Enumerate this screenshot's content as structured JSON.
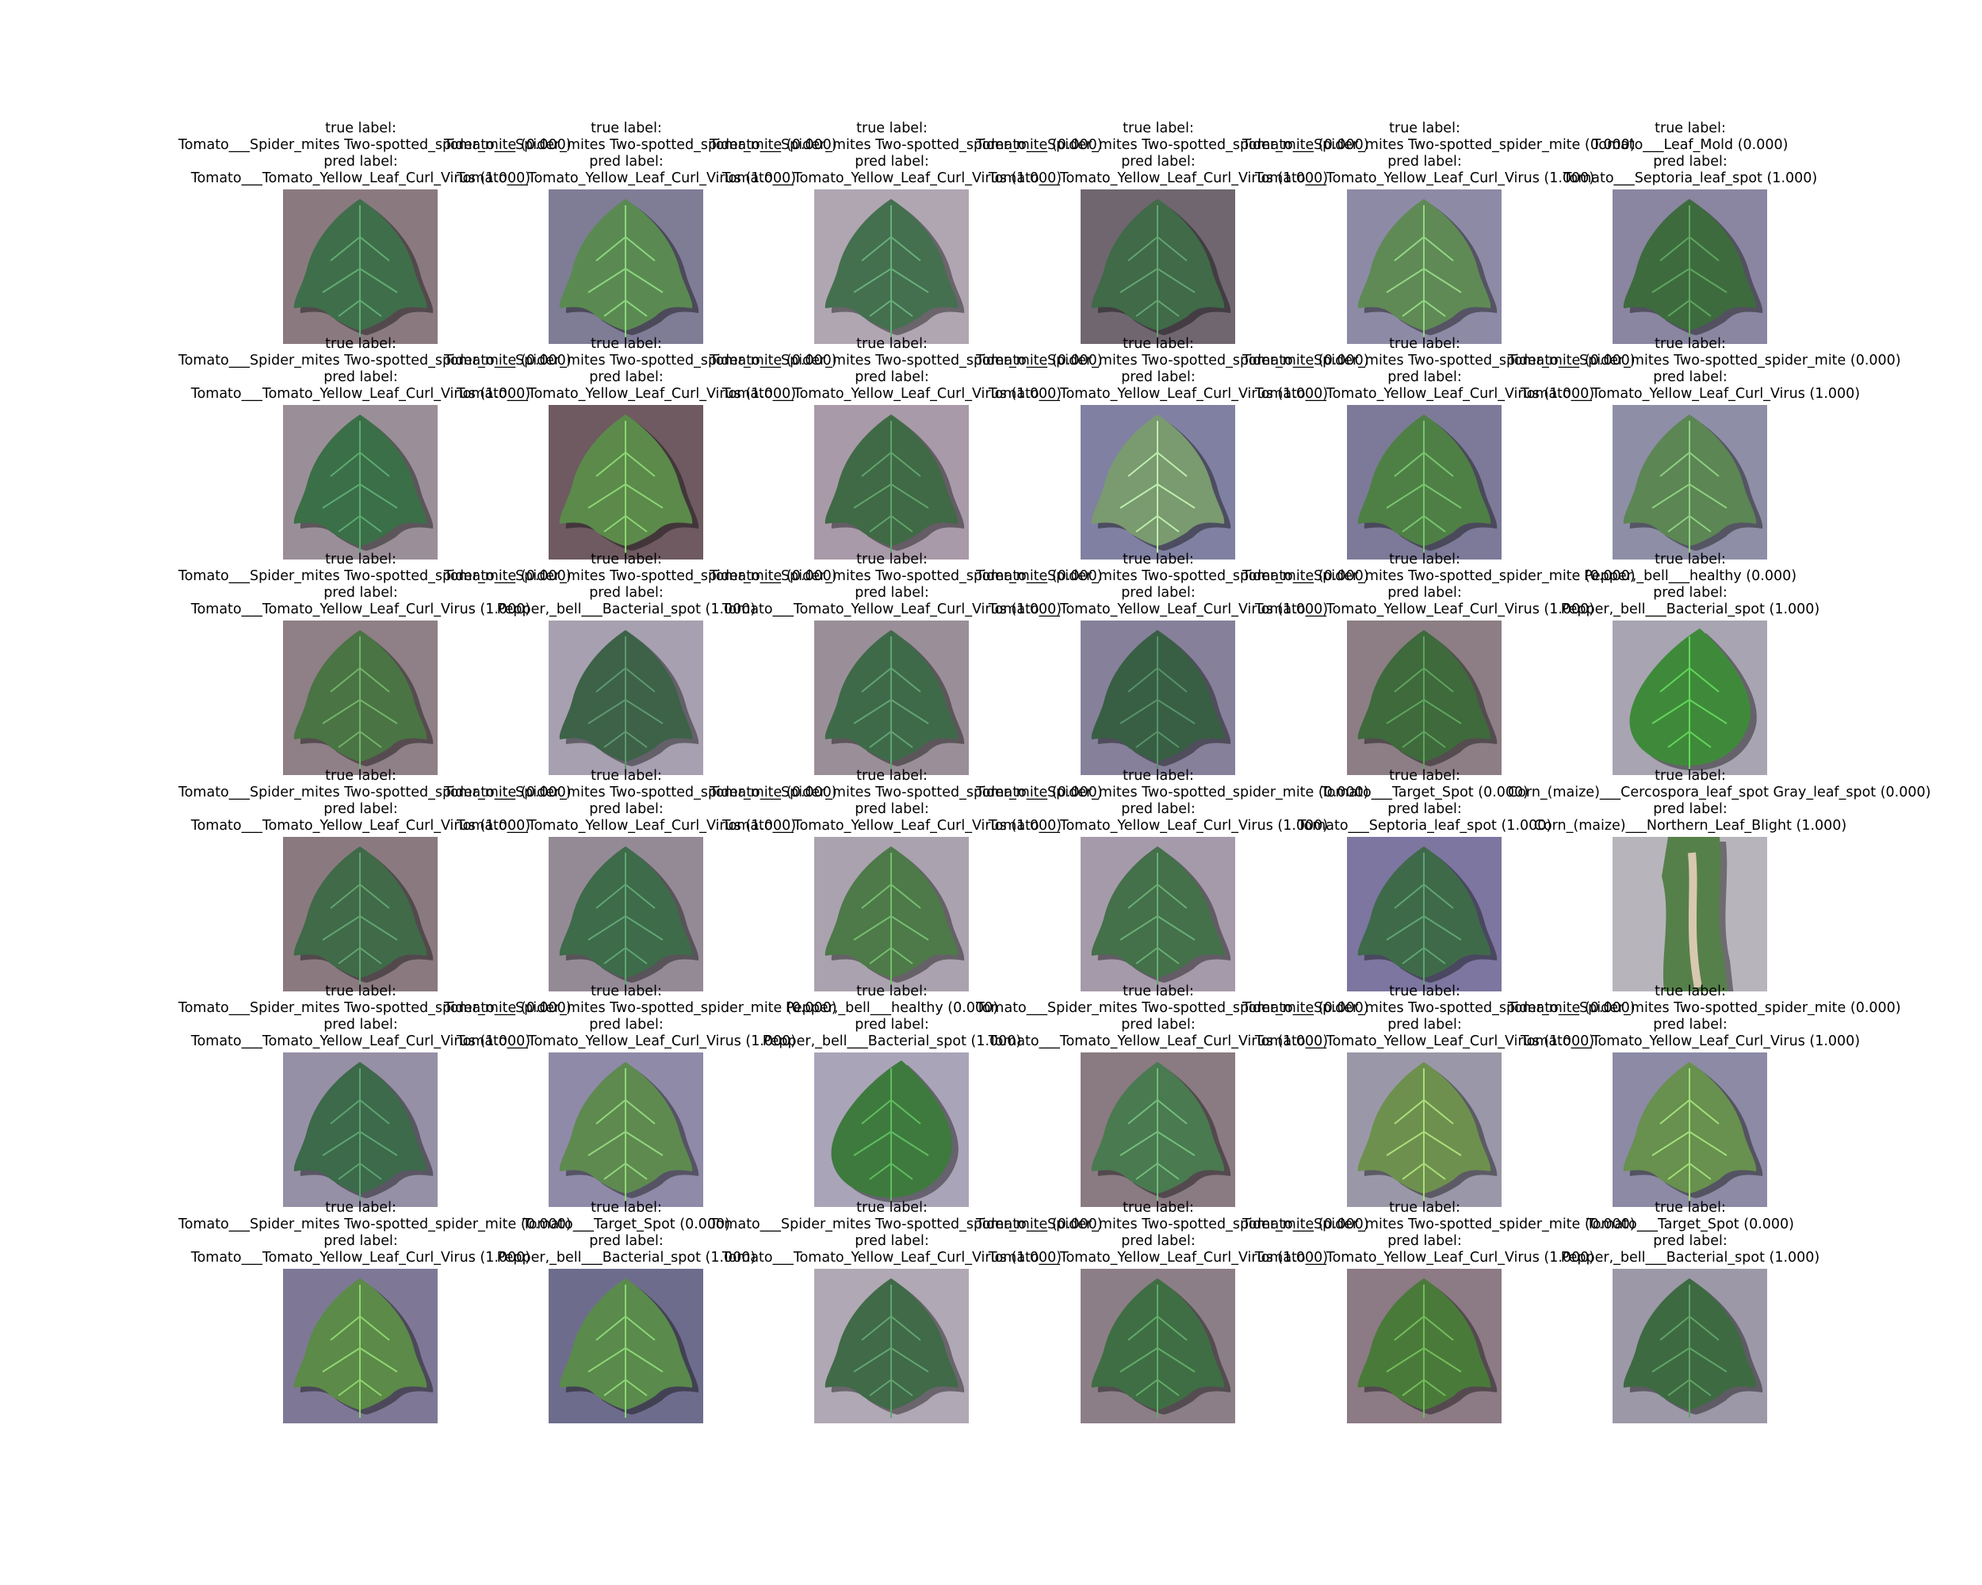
{
  "caption_labels": {
    "true": "true label:",
    "pred": "pred label:"
  },
  "panels": [
    {
      "true_value": "Tomato___Spider_mites Two-spotted_spider_mite (0.000)",
      "pred_value": "Tomato___Tomato_Yellow_Leaf_Curl_Virus (1.000)",
      "background": "#8a7a80",
      "leaf_color": "#3f6f4a",
      "leaf": "tomato-leaf"
    },
    {
      "true_value": "Tomato___Spider_mites Two-spotted_spider_mite (0.000)",
      "pred_value": "Tomato___Tomato_Yellow_Leaf_Curl_Virus (1.000)",
      "background": "#7f7c96",
      "leaf_color": "#5a8a52",
      "leaf": "tomato-leaf"
    },
    {
      "true_value": "Tomato___Spider_mites Two-spotted_spider_mite (0.000)",
      "pred_value": "Tomato___Tomato_Yellow_Leaf_Curl_Virus (1.000)",
      "background": "#b0a6b2",
      "leaf_color": "#44704f",
      "leaf": "tomato-leaf"
    },
    {
      "true_value": "Tomato___Spider_mites Two-spotted_spider_mite (0.000)",
      "pred_value": "Tomato___Tomato_Yellow_Leaf_Curl_Virus (1.000)",
      "background": "#6f6670",
      "leaf_color": "#406a48",
      "leaf": "tomato-leaf"
    },
    {
      "true_value": "Tomato___Spider_mites Two-spotted_spider_mite (0.000)",
      "pred_value": "Tomato___Tomato_Yellow_Leaf_Curl_Virus (1.000)",
      "background": "#8d8aa6",
      "leaf_color": "#5f8a55",
      "leaf": "tomato-leaf"
    },
    {
      "true_value": "Tomato___Leaf_Mold (0.000)",
      "pred_value": "Tomato___Septoria_leaf_spot (1.000)",
      "background": "#8a85a0",
      "leaf_color": "#3d6b3e",
      "leaf": "tomato-leaf"
    },
    {
      "true_value": "Tomato___Spider_mites Two-spotted_spider_mite (0.000)",
      "pred_value": "Tomato___Tomato_Yellow_Leaf_Curl_Virus (1.000)",
      "background": "#9a8f98",
      "leaf_color": "#3b6f48",
      "leaf": "tomato-leaf"
    },
    {
      "true_value": "Tomato___Spider_mites Two-spotted_spider_mite (0.000)",
      "pred_value": "Tomato___Tomato_Yellow_Leaf_Curl_Virus (1.000)",
      "background": "#6e5a60",
      "leaf_color": "#5b8a4a",
      "leaf": "tomato-leaf"
    },
    {
      "true_value": "Tomato___Spider_mites Two-spotted_spider_mite (0.000)",
      "pred_value": "Tomato___Tomato_Yellow_Leaf_Curl_Virus (1.000)",
      "background": "#a89aa8",
      "leaf_color": "#3f6a45",
      "leaf": "tomato-leaf"
    },
    {
      "true_value": "Tomato___Spider_mites Two-spotted_spider_mite (0.000)",
      "pred_value": "Tomato___Tomato_Yellow_Leaf_Curl_Virus (1.000)",
      "background": "#8080a2",
      "leaf_color": "#7a9a70",
      "leaf": "tomato-leaf"
    },
    {
      "true_value": "Tomato___Spider_mites Two-spotted_spider_mite (0.000)",
      "pred_value": "Tomato___Tomato_Yellow_Leaf_Curl_Virus (1.000)",
      "background": "#7c7a98",
      "leaf_color": "#4e8046",
      "leaf": "tomato-leaf"
    },
    {
      "true_value": "Tomato___Spider_mites Two-spotted_spider_mite (0.000)",
      "pred_value": "Tomato___Tomato_Yellow_Leaf_Curl_Virus (1.000)",
      "background": "#8e8ea6",
      "leaf_color": "#5c8654",
      "leaf": "tomato-leaf"
    },
    {
      "true_value": "Tomato___Spider_mites Two-spotted_spider_mite (0.000)",
      "pred_value": "Tomato___Tomato_Yellow_Leaf_Curl_Virus (1.000)",
      "background": "#8f7f86",
      "leaf_color": "#4a7444",
      "leaf": "tomato-leaf"
    },
    {
      "true_value": "Tomato___Spider_mites Two-spotted_spider_mite (0.000)",
      "pred_value": "Pepper,_bell___Bacterial_spot (1.000)",
      "background": "#a7a0b0",
      "leaf_color": "#3d6248",
      "leaf": "tomato-leaf"
    },
    {
      "true_value": "Tomato___Spider_mites Two-spotted_spider_mite (0.000)",
      "pred_value": "Tomato___Tomato_Yellow_Leaf_Curl_Virus (1.000)",
      "background": "#9a8f98",
      "leaf_color": "#3f6a4a",
      "leaf": "tomato-leaf"
    },
    {
      "true_value": "Tomato___Spider_mites Two-spotted_spider_mite (0.000)",
      "pred_value": "Tomato___Tomato_Yellow_Leaf_Curl_Virus (1.000)",
      "background": "#86809a",
      "leaf_color": "#385f44",
      "leaf": "tomato-leaf"
    },
    {
      "true_value": "Tomato___Spider_mites Two-spotted_spider_mite (0.000)",
      "pred_value": "Tomato___Tomato_Yellow_Leaf_Curl_Virus (1.000)",
      "background": "#8c7e84",
      "leaf_color": "#3e6a3c",
      "leaf": "tomato-leaf"
    },
    {
      "true_value": "Pepper,_bell___healthy (0.000)",
      "pred_value": "Pepper,_bell___Bacterial_spot (1.000)",
      "background": "#a8a4b2",
      "leaf_color": "#3f8a3a",
      "leaf": "pepper-leaf"
    },
    {
      "true_value": "Tomato___Spider_mites Two-spotted_spider_mite (0.000)",
      "pred_value": "Tomato___Tomato_Yellow_Leaf_Curl_Virus (1.000)",
      "background": "#8a7a80",
      "leaf_color": "#406a48",
      "leaf": "tomato-leaf"
    },
    {
      "true_value": "Tomato___Spider_mites Two-spotted_spider_mite (0.000)",
      "pred_value": "Tomato___Tomato_Yellow_Leaf_Curl_Virus (1.000)",
      "background": "#948a96",
      "leaf_color": "#3e6b4a",
      "leaf": "tomato-leaf"
    },
    {
      "true_value": "Tomato___Spider_mites Two-spotted_spider_mite (0.000)",
      "pred_value": "Tomato___Tomato_Yellow_Leaf_Curl_Virus (1.000)",
      "background": "#aaa2ae",
      "leaf_color": "#4d7a48",
      "leaf": "tomato-leaf"
    },
    {
      "true_value": "Tomato___Spider_mites Two-spotted_spider_mite (0.000)",
      "pred_value": "Tomato___Tomato_Yellow_Leaf_Curl_Virus (1.000)",
      "background": "#a59aaa",
      "leaf_color": "#44704a",
      "leaf": "tomato-leaf"
    },
    {
      "true_value": "Tomato___Target_Spot (0.000)",
      "pred_value": "Tomato___Septoria_leaf_spot (1.000)",
      "background": "#7c76a0",
      "leaf_color": "#3e6a4a",
      "leaf": "tomato-leaf"
    },
    {
      "true_value": "Corn_(maize)___Cercospora_leaf_spot Gray_leaf_spot (0.000)",
      "pred_value": "Corn_(maize)___Northern_Leaf_Blight (1.000)",
      "background": "#b8b4bc",
      "leaf_color": "#56804a",
      "leaf": "corn-leaf"
    },
    {
      "true_value": "Tomato___Spider_mites Two-spotted_spider_mite (0.000)",
      "pred_value": "Tomato___Tomato_Yellow_Leaf_Curl_Virus (1.000)",
      "background": "#9690a6",
      "leaf_color": "#3c6a4a",
      "leaf": "tomato-leaf"
    },
    {
      "true_value": "Tomato___Spider_mites Two-spotted_spider_mite (0.000)",
      "pred_value": "Tomato___Tomato_Yellow_Leaf_Curl_Virus (1.000)",
      "background": "#8f8aa8",
      "leaf_color": "#5e8a50",
      "leaf": "tomato-leaf"
    },
    {
      "true_value": "Pepper,_bell___healthy (0.000)",
      "pred_value": "Pepper,_bell___Bacterial_spot (1.000)",
      "background": "#aaa4b8",
      "leaf_color": "#3e7a3e",
      "leaf": "pepper-leaf"
    },
    {
      "true_value": "Tomato___Spider_mites Two-spotted_spider_mite (0.000)",
      "pred_value": "Tomato___Tomato_Yellow_Leaf_Curl_Virus (1.000)",
      "background": "#8a7a82",
      "leaf_color": "#4a7a50",
      "leaf": "tomato-leaf"
    },
    {
      "true_value": "Tomato___Spider_mites Two-spotted_spider_mite (0.000)",
      "pred_value": "Tomato___Tomato_Yellow_Leaf_Curl_Virus (1.000)",
      "background": "#9a98a8",
      "leaf_color": "#6e904e",
      "leaf": "tomato-leaf"
    },
    {
      "true_value": "Tomato___Spider_mites Two-spotted_spider_mite (0.000)",
      "pred_value": "Tomato___Tomato_Yellow_Leaf_Curl_Virus (1.000)",
      "background": "#8c8aa4",
      "leaf_color": "#68904e",
      "leaf": "tomato-leaf"
    },
    {
      "true_value": "Tomato___Spider_mites Two-spotted_spider_mite (0.000)",
      "pred_value": "Tomato___Tomato_Yellow_Leaf_Curl_Virus (1.000)",
      "background": "#7e7896",
      "leaf_color": "#5c8a48",
      "leaf": "tomato-leaf"
    },
    {
      "true_value": "Tomato___Target_Spot (0.000)",
      "pred_value": "Pepper,_bell___Bacterial_spot (1.000)",
      "background": "#6e6c8c",
      "leaf_color": "#5a8a4c",
      "leaf": "tomato-leaf"
    },
    {
      "true_value": "Tomato___Spider_mites Two-spotted_spider_mite (0.000)",
      "pred_value": "Tomato___Tomato_Yellow_Leaf_Curl_Virus (1.000)",
      "background": "#b0a8b4",
      "leaf_color": "#406a48",
      "leaf": "tomato-leaf"
    },
    {
      "true_value": "Tomato___Spider_mites Two-spotted_spider_mite (0.000)",
      "pred_value": "Tomato___Tomato_Yellow_Leaf_Curl_Virus (1.000)",
      "background": "#8c7e86",
      "leaf_color": "#3f6e44",
      "leaf": "tomato-leaf"
    },
    {
      "true_value": "Tomato___Spider_mites Two-spotted_spider_mite (0.000)",
      "pred_value": "Tomato___Tomato_Yellow_Leaf_Curl_Virus (1.000)",
      "background": "#8c7a84",
      "leaf_color": "#4a7a3a",
      "leaf": "tomato-leaf"
    },
    {
      "true_value": "Tomato___Target_Spot (0.000)",
      "pred_value": "Pepper,_bell___Bacterial_spot (1.000)",
      "background": "#9c98a8",
      "leaf_color": "#3e6a42",
      "leaf": "tomato-leaf"
    }
  ]
}
